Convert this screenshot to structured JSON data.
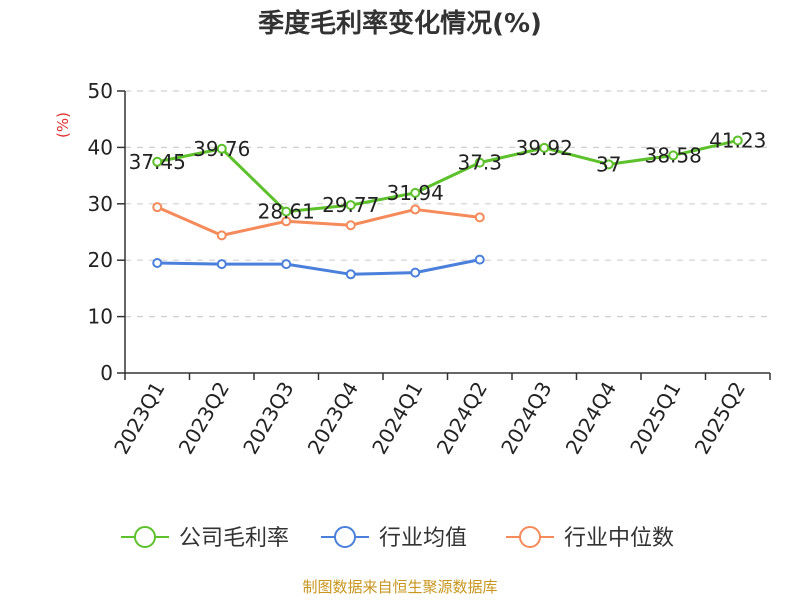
{
  "chart_data": {
    "type": "line",
    "title": "季度毛利率变化情况(%)",
    "unit_label": "(%)",
    "categories": [
      "2023Q1",
      "2023Q2",
      "2023Q3",
      "2023Q4",
      "2024Q1",
      "2024Q2",
      "2024Q3",
      "2024Q4",
      "2025Q1",
      "2025Q2"
    ],
    "ylim": [
      0,
      50
    ],
    "yticks": [
      "0",
      "10",
      "20",
      "30",
      "40",
      "50"
    ],
    "grid": true,
    "legend_position": "bottom",
    "series": [
      {
        "name": "公司毛利率",
        "color": "#5cc12a",
        "values": [
          37.45,
          39.76,
          28.61,
          29.77,
          31.94,
          37.3,
          39.92,
          37,
          38.58,
          41.23
        ],
        "labels": [
          "37.45",
          "39.76",
          "28.61",
          "29.77",
          "31.94",
          "37.3",
          "39.92",
          "37",
          "38.58",
          "41.23"
        ]
      },
      {
        "name": "行业均值",
        "color": "#4a7fdb",
        "values": [
          19.5,
          19.3,
          19.3,
          17.5,
          17.8,
          20.1,
          null,
          null,
          null,
          null
        ]
      },
      {
        "name": "行业中位数",
        "color": "#f58a5a",
        "values": [
          29.4,
          24.4,
          26.9,
          26.2,
          29.0,
          27.6,
          null,
          null,
          null,
          null
        ]
      }
    ]
  },
  "footer": {
    "source": "制图数据来自恒生聚源数据库"
  }
}
